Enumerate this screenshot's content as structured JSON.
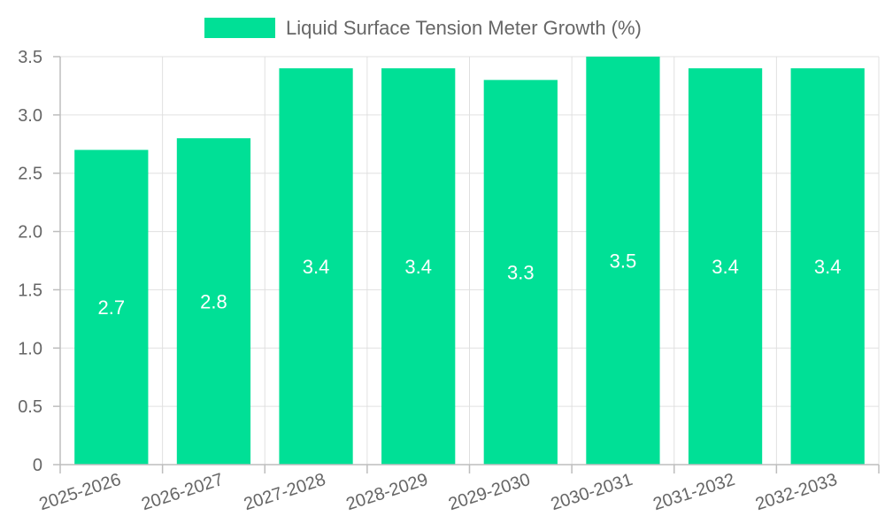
{
  "chart_data": {
    "type": "bar",
    "title": "",
    "xlabel": "",
    "ylabel": "",
    "categories": [
      "2025-2026",
      "2026-2027",
      "2027-2028",
      "2028-2029",
      "2029-2030",
      "2030-2031",
      "2031-2032",
      "2032-2033"
    ],
    "series": [
      {
        "name": "Liquid Surface Tension Meter Growth (%)",
        "values": [
          2.7,
          2.8,
          3.4,
          3.4,
          3.3,
          3.5,
          3.4,
          3.4
        ],
        "labels": [
          "2.7",
          "2.8",
          "3.4",
          "3.4",
          "3.3",
          "3.5",
          "3.4",
          "3.4"
        ],
        "color": "#00e096"
      }
    ],
    "ylim": [
      0,
      3.5
    ],
    "yticks": [
      "0",
      "0.5",
      "1.0",
      "1.5",
      "2.0",
      "2.5",
      "3.0",
      "3.5"
    ],
    "ytick_values": [
      0,
      0.5,
      1.0,
      1.5,
      2.0,
      2.5,
      3.0,
      3.5
    ],
    "grid": true,
    "legend_position": "top"
  }
}
